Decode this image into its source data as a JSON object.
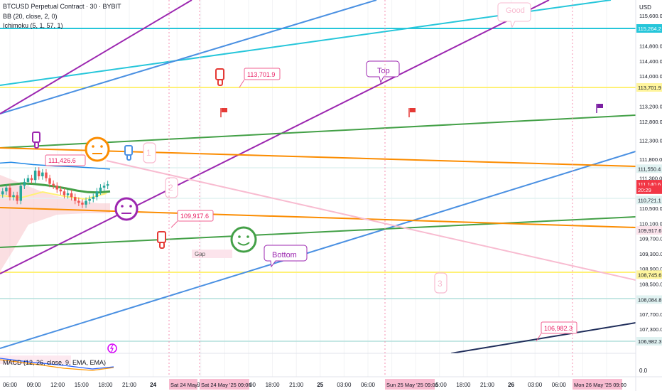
{
  "header": {
    "symbol": "BTCUSD Perpetual Contract · 30 · BYBIT",
    "indicators": [
      "BB (20, close, 2, 0)",
      "Ichimoku (5, 1, 57, 1)"
    ],
    "macd_label": "MACD (12, 26, close, 9, EMA, EMA)"
  },
  "price_axis": {
    "currency": "USD",
    "ticks": [
      "115,600.0",
      "114,800.0",
      "114,400.0",
      "114,000.0",
      "113,200.0",
      "112,800.0",
      "112,300.0",
      "111,800.0",
      "111,300.0",
      "110,500.0",
      "110,100.0",
      "109,700.0",
      "109,300.0",
      "108,900.0",
      "108,500.0",
      "107,700.0",
      "107,300.0"
    ],
    "tick_values": [
      115600,
      114800,
      114400,
      114000,
      113200,
      112800,
      112300,
      111800,
      111300,
      110500,
      110100,
      109700,
      109300,
      108900,
      108500,
      107700,
      107300
    ],
    "macd_zero": "0.0",
    "badges": [
      {
        "label": "115,264.2",
        "value": 115264.2,
        "color": "#26c6da"
      },
      {
        "label": "113,701.9",
        "value": 113701.9,
        "color": "#fff59d"
      },
      {
        "label": "111,550.4",
        "value": 111550.4,
        "color": "#e0f2f1"
      },
      {
        "label": "111,140.6",
        "value": 111140.6,
        "color": "#f23645"
      },
      {
        "label": "20:29",
        "value": 110995,
        "color": "#f23645"
      },
      {
        "label": "110,721.1",
        "value": 110721.1,
        "color": "#e0f2f1"
      },
      {
        "label": "109,917.6",
        "value": 109917.6,
        "color": "#fce4ec"
      },
      {
        "label": "108,745.6",
        "value": 108745.6,
        "color": "#fff59d"
      },
      {
        "label": "108,084.8",
        "value": 108084.8,
        "color": "#e0f2f1"
      },
      {
        "label": "106,982.3",
        "value": 106982.3,
        "color": "#e0f2f1"
      }
    ]
  },
  "time_axis": {
    "ticks": [
      "06:00",
      "09:00",
      "12:00",
      "15:00",
      "18:00",
      "21:00",
      "24",
      "06:00",
      "09:00",
      "12:00",
      "15:00",
      "18:00",
      "21:00",
      "25",
      "03:00",
      "06:00",
      "09:00",
      "12:00",
      "15:00",
      "18:00",
      "21:00",
      "26",
      "03:00",
      "06:00",
      "09:00",
      "12:00"
    ],
    "highlight_labels": [
      "Sat 24 May '25",
      "Sat 24 May '25  09:00",
      "Sun 25 May '25  09:00",
      "Mon 26 May '25  09:00"
    ]
  },
  "annotations": {
    "price_callouts": [
      "113,701.9",
      "111,426.6",
      "109,917.6",
      "106,982.3"
    ],
    "text_callouts": [
      "Top",
      "Bottom",
      "Good"
    ],
    "gap_label": "Gap",
    "wave_labels": [
      "1",
      "2",
      "3"
    ]
  },
  "chart_data": {
    "type": "line",
    "title": "BTCUSD Perpetual Contract · 30 · BYBIT",
    "xlabel": "",
    "ylabel": "USD",
    "ylim": [
      106600,
      116200
    ],
    "last_price": 111140.6,
    "horizontal_levels": [
      {
        "price": 115264.2,
        "color": "#26c6da"
      },
      {
        "price": 113701.9,
        "color": "#fff176"
      },
      {
        "price": 111550.4,
        "color": "#b2dfdb"
      },
      {
        "price": 110721.1,
        "color": "#b2dfdb"
      },
      {
        "price": 108745.6,
        "color": "#fff176"
      },
      {
        "price": 108084.8,
        "color": "#b2dfdb"
      },
      {
        "price": 106982.3,
        "color": "#b2dfdb"
      }
    ],
    "candles_close": [
      110950,
      111050,
      110800,
      110850,
      110700,
      111100,
      111200,
      111300,
      111250,
      111500,
      111350,
      111450,
      111300,
      111150,
      111100,
      111000,
      110950,
      110850,
      110900,
      110800,
      110700,
      110650,
      110600,
      110700,
      110750,
      110800,
      110950,
      111050,
      111100,
      111140.6
    ],
    "bollinger_upper": [
      111700,
      111720,
      111690,
      111660,
      111640,
      111620,
      111610,
      111600,
      111580,
      111560,
      111540
    ],
    "bollinger_middle": [
      111100,
      111130,
      111160,
      111150,
      111120,
      111080,
      111030,
      110970,
      110930,
      110920,
      110950
    ]
  }
}
